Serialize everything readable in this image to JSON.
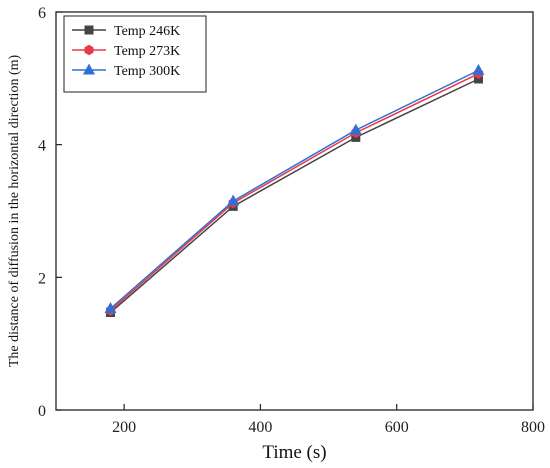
{
  "chart_data": {
    "type": "line",
    "xlabel": "Time (s)",
    "ylabel": "The distance of diffusion in the horizontal direction (m)",
    "xlim": [
      100,
      800
    ],
    "ylim": [
      0,
      6
    ],
    "xticks": [
      200,
      400,
      600,
      800
    ],
    "yticks": [
      0,
      2,
      4,
      6
    ],
    "grid": false,
    "legend_position": "top-left",
    "series": [
      {
        "name": "Temp 246K",
        "color": "#444444",
        "marker": "square",
        "x": [
          180,
          360,
          540,
          720
        ],
        "y": [
          1.47,
          3.07,
          4.11,
          4.99
        ]
      },
      {
        "name": "Temp 273K",
        "color": "#e8394a",
        "marker": "hexagon",
        "x": [
          180,
          360,
          540,
          720
        ],
        "y": [
          1.5,
          3.12,
          4.18,
          5.07
        ]
      },
      {
        "name": "Temp 300K",
        "color": "#2f6fd6",
        "marker": "triangle",
        "x": [
          180,
          360,
          540,
          720
        ],
        "y": [
          1.53,
          3.15,
          4.22,
          5.12
        ]
      }
    ]
  }
}
